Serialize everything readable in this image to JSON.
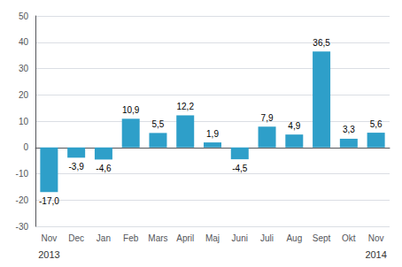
{
  "chart_data": {
    "type": "bar",
    "categories": [
      "Nov",
      "Dec",
      "Jan",
      "Feb",
      "Mars",
      "April",
      "Maj",
      "Juni",
      "Juli",
      "Aug",
      "Sept",
      "Okt",
      "Nov"
    ],
    "values": [
      -17.0,
      -3.9,
      -4.6,
      10.9,
      5.5,
      12.2,
      1.9,
      -4.5,
      7.9,
      4.9,
      36.5,
      3.3,
      5.6
    ],
    "value_labels": [
      "-17,0",
      "-3,9",
      "-4,6",
      "10,9",
      "5,5",
      "12,2",
      "1,9",
      "-4,5",
      "7,9",
      "4,9",
      "36,5",
      "3,3",
      "5,6"
    ],
    "color": "#2e9fc9",
    "ylim": [
      -30,
      50
    ],
    "yticks": [
      -30,
      -20,
      -10,
      0,
      10,
      20,
      30,
      40,
      50
    ],
    "grid": true,
    "data_labels": true,
    "annotations": [
      {
        "text": "2013",
        "x": 0
      },
      {
        "text": "2014",
        "x": 12
      }
    ]
  }
}
